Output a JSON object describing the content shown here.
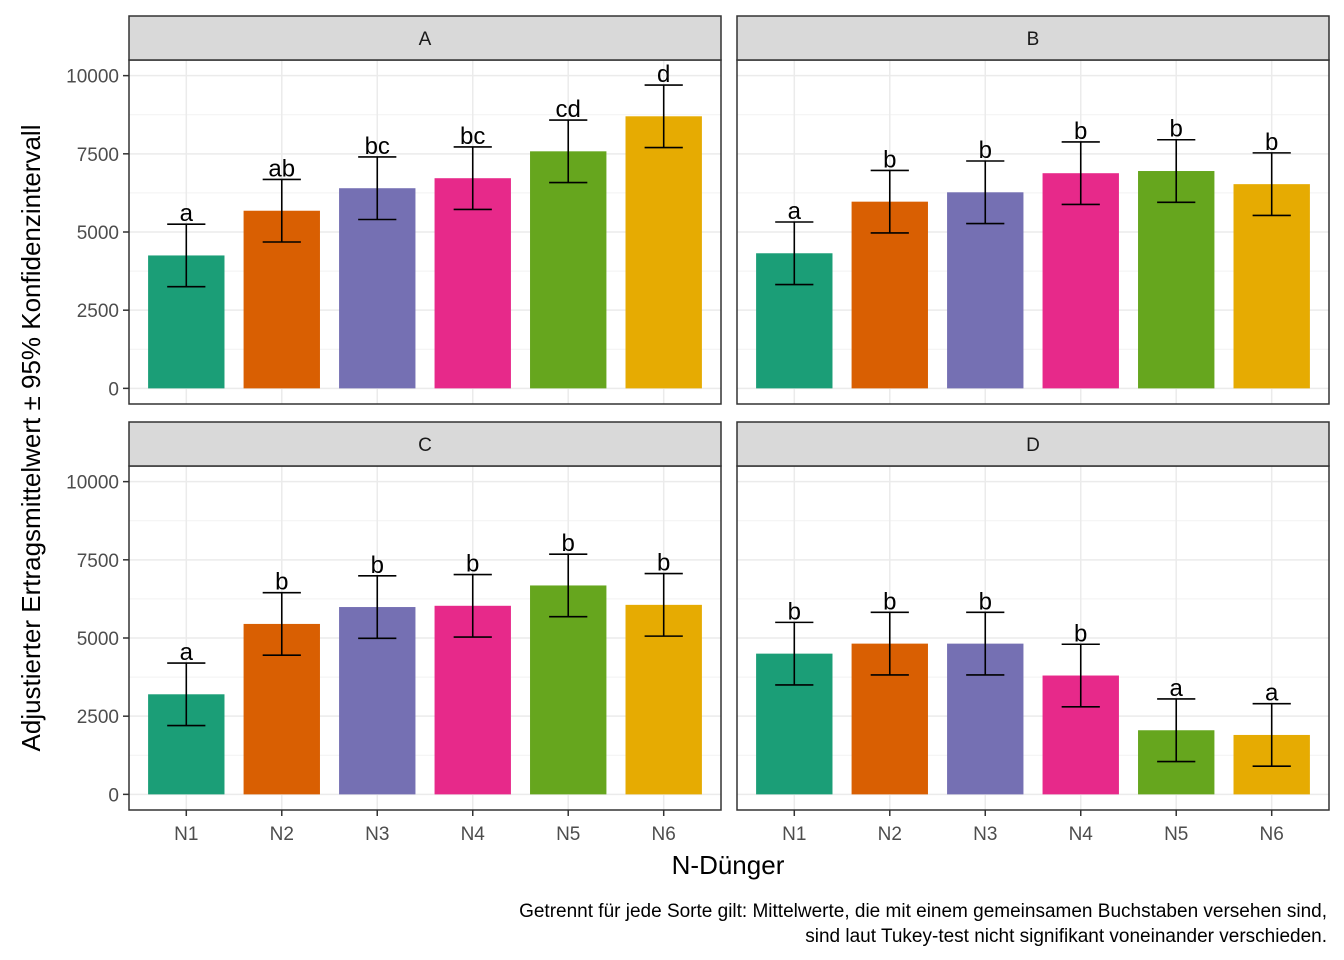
{
  "chart_data": {
    "type": "bar",
    "xlabel": "N-Dünger",
    "ylabel": "Adjustierter Ertragsmittelwert ± 95% Konfidenzintervall",
    "caption_lines": [
      "Getrennt für jede Sorte gilt: Mittelwerte, die mit einem gemeinsamen Buchstaben versehen sind,",
      "sind laut Tukey-test nicht signifikant voneinander verschieden."
    ],
    "categories": [
      "N1",
      "N2",
      "N3",
      "N4",
      "N5",
      "N6"
    ],
    "ylim": [
      -500,
      10500
    ],
    "yticks": [
      0,
      2500,
      5000,
      7500,
      10000
    ],
    "ytick_labels": [
      "0",
      "2500",
      "5000",
      "7500",
      "10000"
    ],
    "grid": true,
    "legend": "none",
    "colors": [
      "#1B9E77",
      "#D95F02",
      "#7570B3",
      "#E7298A",
      "#66A61E",
      "#E6AB02"
    ],
    "panels": [
      {
        "name": "A",
        "values": [
          4250,
          5680,
          6400,
          6720,
          7580,
          8700
        ],
        "ci_low": [
          3250,
          4680,
          5400,
          5720,
          6580,
          7700
        ],
        "ci_high": [
          5250,
          6680,
          7400,
          7720,
          8580,
          9700
        ],
        "letters": [
          "a",
          "ab",
          "bc",
          "bc",
          "cd",
          "d"
        ]
      },
      {
        "name": "B",
        "values": [
          4320,
          5970,
          6270,
          6880,
          6950,
          6530
        ],
        "ci_low": [
          3320,
          4970,
          5270,
          5880,
          5950,
          5530
        ],
        "ci_high": [
          5320,
          6970,
          7270,
          7880,
          7950,
          7530
        ],
        "letters": [
          "a",
          "b",
          "b",
          "b",
          "b",
          "b"
        ]
      },
      {
        "name": "C",
        "values": [
          3200,
          5450,
          5990,
          6030,
          6680,
          6060
        ],
        "ci_low": [
          2200,
          4450,
          4990,
          5030,
          5680,
          5060
        ],
        "ci_high": [
          4200,
          6450,
          6990,
          7030,
          7680,
          7060
        ],
        "letters": [
          "a",
          "b",
          "b",
          "b",
          "b",
          "b"
        ]
      },
      {
        "name": "D",
        "values": [
          4500,
          4820,
          4820,
          3800,
          2050,
          1900
        ],
        "ci_low": [
          3500,
          3820,
          3820,
          2800,
          1050,
          900
        ],
        "ci_high": [
          5500,
          5820,
          5820,
          4800,
          3050,
          2900
        ],
        "letters": [
          "b",
          "b",
          "b",
          "b",
          "a",
          "a"
        ]
      }
    ]
  }
}
